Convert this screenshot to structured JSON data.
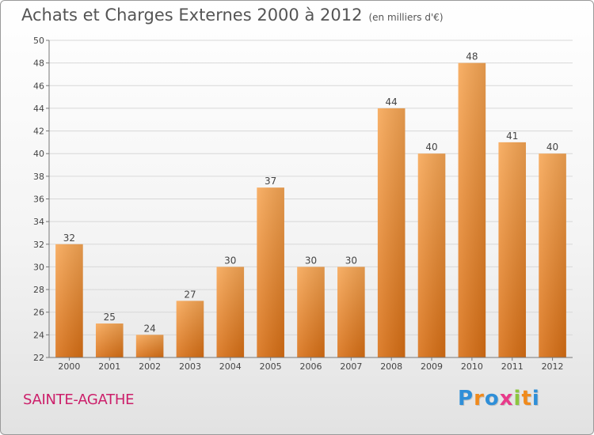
{
  "header": {
    "title": "Achats et Charges Externes 2000 à 2012",
    "subtitle": "(en milliers d'€)"
  },
  "footer": {
    "place": "SAINTE-AGATHE",
    "brand": {
      "letters": [
        {
          "ch": "P",
          "color": "#2f8fd8"
        },
        {
          "ch": "r",
          "color": "#f08a1c"
        },
        {
          "ch": "o",
          "color": "#2f8fd8"
        },
        {
          "ch": "x",
          "color": "#e83a8a"
        },
        {
          "ch": "i",
          "color": "#8cc63f"
        },
        {
          "ch": "t",
          "color": "#f08a1c"
        },
        {
          "ch": "i",
          "color": "#2f8fd8"
        }
      ]
    }
  },
  "colors": {
    "bar_top": "#f7a654",
    "bar_bottom": "#d96f14",
    "grid": "#d8d8d8",
    "axis": "#777777"
  },
  "chart_data": {
    "type": "bar",
    "title": "Achats et Charges Externes 2000 à 2012",
    "subtitle": "(en milliers d'€)",
    "categories": [
      "2000",
      "2001",
      "2002",
      "2003",
      "2004",
      "2005",
      "2006",
      "2007",
      "2008",
      "2009",
      "2010",
      "2011",
      "2012"
    ],
    "values": [
      32,
      25,
      24,
      27,
      30,
      37,
      30,
      30,
      44,
      40,
      48,
      41,
      40
    ],
    "ylim": [
      22,
      50
    ],
    "yticks": [
      22,
      24,
      26,
      28,
      30,
      32,
      34,
      36,
      38,
      40,
      42,
      44,
      46,
      48,
      50
    ],
    "grid": true,
    "legend": "none",
    "xlabel": "",
    "ylabel": ""
  }
}
